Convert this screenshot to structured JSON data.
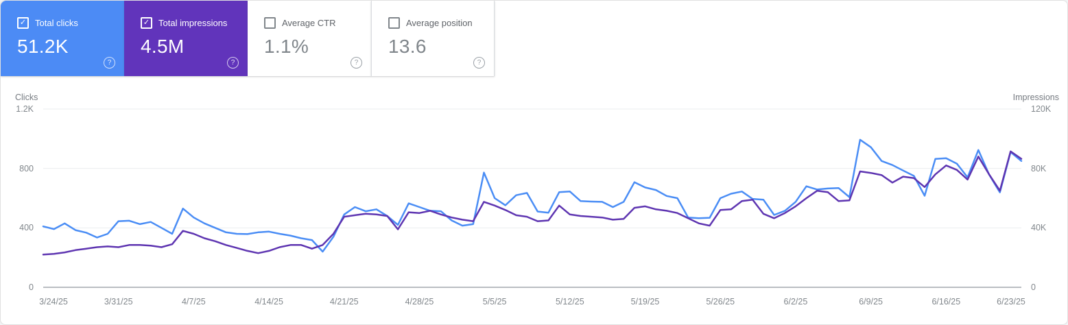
{
  "icons": {
    "checkmark": "✓",
    "help": "?"
  },
  "cards": [
    {
      "label": "Total clicks",
      "value": "51.2K",
      "checked": true,
      "color": "#4c8bf5"
    },
    {
      "label": "Total impressions",
      "value": "4.5M",
      "checked": true,
      "color": "#6134bb"
    },
    {
      "label": "Average CTR",
      "value": "1.1%",
      "checked": false,
      "color": "#ffffff"
    },
    {
      "label": "Average position",
      "value": "13.6",
      "checked": false,
      "color": "#ffffff"
    }
  ],
  "chart_data": {
    "type": "line",
    "frequency": "daily",
    "x_start": "3/24/25",
    "x_end": "6/23/25",
    "x_tick_labels": [
      "3/24/25",
      "3/31/25",
      "4/7/25",
      "4/14/25",
      "4/21/25",
      "4/28/25",
      "5/5/25",
      "5/12/25",
      "5/19/25",
      "5/26/25",
      "6/2/25",
      "6/9/25",
      "6/16/25",
      "6/23/25"
    ],
    "left_axis": {
      "title": "Clicks",
      "ticks": [
        "0",
        "400",
        "800",
        "1.2K"
      ],
      "max": 1200
    },
    "right_axis": {
      "title": "Impressions",
      "ticks": [
        "0",
        "40K",
        "80K",
        "120K"
      ],
      "max": 120000
    },
    "grid": "horizontal",
    "series": [
      {
        "name": "Total clicks",
        "axis": "left",
        "color": "#4a8df5",
        "values": [
          410,
          392,
          430,
          385,
          368,
          335,
          360,
          445,
          448,
          425,
          440,
          400,
          360,
          530,
          470,
          430,
          400,
          370,
          360,
          358,
          370,
          375,
          360,
          348,
          330,
          318,
          240,
          340,
          490,
          540,
          512,
          525,
          480,
          420,
          565,
          540,
          515,
          512,
          450,
          415,
          425,
          772,
          600,
          552,
          620,
          635,
          510,
          502,
          640,
          645,
          580,
          577,
          575,
          540,
          575,
          707,
          672,
          655,
          615,
          600,
          470,
          465,
          468,
          600,
          630,
          645,
          595,
          590,
          487,
          515,
          575,
          680,
          658,
          665,
          668,
          607,
          993,
          943,
          850,
          823,
          786,
          750,
          616,
          864,
          869,
          832,
          740,
          924,
          759,
          639,
          910,
          850
        ]
      },
      {
        "name": "Total impressions",
        "axis": "right",
        "color": "#5e35b1",
        "values": [
          22000,
          22500,
          23500,
          25000,
          26000,
          27000,
          27500,
          27000,
          28500,
          28500,
          28000,
          27000,
          29000,
          38000,
          36000,
          33000,
          31000,
          28500,
          26500,
          24500,
          23000,
          24500,
          27000,
          28500,
          28500,
          26000,
          28500,
          36000,
          47500,
          48500,
          49500,
          49000,
          48000,
          39000,
          50500,
          50000,
          51500,
          49000,
          47000,
          45500,
          44500,
          57500,
          55000,
          52000,
          48500,
          47500,
          44500,
          45000,
          55000,
          49000,
          48000,
          47500,
          47000,
          45500,
          46000,
          53500,
          54500,
          52500,
          51500,
          50000,
          46500,
          43000,
          41500,
          52000,
          52500,
          58000,
          59000,
          49500,
          46500,
          50000,
          54500,
          60000,
          65000,
          64000,
          58000,
          58500,
          78000,
          77000,
          75500,
          70500,
          74500,
          73500,
          67500,
          76000,
          82000,
          79000,
          72500,
          88000,
          76000,
          65000,
          91500,
          86500
        ]
      }
    ]
  }
}
